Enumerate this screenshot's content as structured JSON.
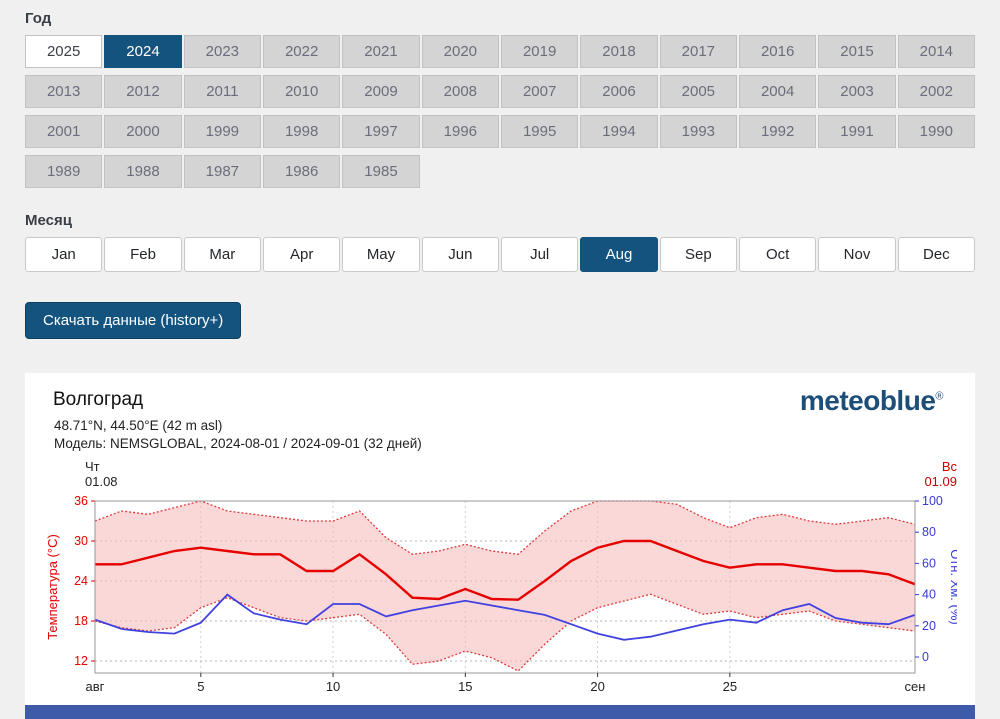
{
  "year_section": {
    "label": "Год",
    "selected": "2024",
    "white": "2025",
    "years": [
      "2025",
      "2024",
      "2023",
      "2022",
      "2021",
      "2020",
      "2019",
      "2018",
      "2017",
      "2016",
      "2015",
      "2014",
      "2013",
      "2012",
      "2011",
      "2010",
      "2009",
      "2008",
      "2007",
      "2006",
      "2005",
      "2004",
      "2003",
      "2002",
      "2001",
      "2000",
      "1999",
      "1998",
      "1997",
      "1996",
      "1995",
      "1994",
      "1993",
      "1992",
      "1991",
      "1990",
      "1989",
      "1988",
      "1987",
      "1986",
      "1985"
    ]
  },
  "month_section": {
    "label": "Месяц",
    "selected": "Aug",
    "months": [
      "Jan",
      "Feb",
      "Mar",
      "Apr",
      "May",
      "Jun",
      "Jul",
      "Aug",
      "Sep",
      "Oct",
      "Nov",
      "Dec"
    ]
  },
  "download_button_label": "Скачать данные (history+)",
  "chart_header": {
    "title": "Волгоград",
    "coordinates": "48.71°N, 44.50°E (42 m asl)",
    "model_line": "Модель: NEMSGLOBAL, 2024-08-01 / 2024-09-01 (32 дней)",
    "brand": "meteoblue",
    "brand_reg": "®"
  },
  "colors": {
    "accent_blue": "#15537f",
    "button_gray": "#d4d4d4",
    "page_bg": "#f0f0f0",
    "brand_blue": "#1d4e78",
    "temp_red": "#e60000",
    "humidity_blue": "#4141e0",
    "band_pink": "#f5b8b8",
    "bottom_bar_blue": "#3d5ba9"
  },
  "chart_data": {
    "type": "line",
    "title": "Волгоград",
    "days": 32,
    "start_label": {
      "weekday": "Чт",
      "date": "01.08"
    },
    "end_label": {
      "weekday": "Вс",
      "date": "01.09"
    },
    "ylabel_left": "Температура (°C)",
    "ylabel_right": "Отн. Хм. (%)",
    "yticks_left": [
      12,
      18,
      24,
      30,
      36
    ],
    "yticks_right": [
      0,
      20,
      40,
      60,
      80,
      100
    ],
    "ylim_left": [
      10.2,
      36
    ],
    "ylim_right": [
      -7.7,
      100
    ],
    "xticks": [
      5,
      10,
      15,
      20,
      25
    ],
    "xstart_label": "авг",
    "xend_label": "сен",
    "grid": true,
    "legend": "none",
    "series": [
      {
        "name": "temperature_max",
        "axis": "left",
        "style": "dotted",
        "color": "#e23b3b",
        "values": [
          33,
          34.5,
          34,
          35,
          36,
          34.5,
          34,
          33.5,
          33,
          33,
          34.5,
          30.5,
          28,
          28.5,
          29.5,
          28.5,
          28,
          31.5,
          34.5,
          36,
          36.3,
          36.3,
          35.5,
          33.5,
          32,
          33.5,
          34,
          33,
          32.5,
          33,
          33.5,
          32.5
        ]
      },
      {
        "name": "temperature_mean",
        "axis": "left",
        "style": "solid",
        "color": "#e60000",
        "values": [
          26.5,
          26.5,
          27.5,
          28.5,
          29,
          28.5,
          28,
          28,
          25.5,
          25.5,
          28,
          25,
          21.5,
          21.3,
          22.8,
          21.3,
          21.2,
          24,
          27,
          29,
          30,
          30,
          28.5,
          27,
          26,
          26.5,
          26.5,
          26,
          25.5,
          25.5,
          25,
          23.5
        ]
      },
      {
        "name": "temperature_min",
        "axis": "left",
        "style": "dotted",
        "color": "#e23b3b",
        "values": [
          18,
          17,
          16.5,
          17,
          20,
          21.5,
          20,
          18.5,
          18,
          18.5,
          19,
          16,
          11.5,
          12,
          13.5,
          12.5,
          10.5,
          14.5,
          18,
          20,
          21,
          22,
          20.5,
          19,
          19.5,
          18.5,
          19,
          19.5,
          18,
          17.5,
          17,
          16.5
        ]
      },
      {
        "name": "relative_humidity",
        "axis": "right",
        "style": "solid",
        "color": "#4141e0",
        "values": [
          24,
          18,
          16,
          15,
          22,
          40,
          28,
          24,
          21,
          34,
          34,
          26,
          30,
          33,
          36,
          33,
          30,
          27,
          21,
          15,
          11,
          13,
          17,
          21,
          24,
          22,
          30,
          34,
          25,
          22,
          21,
          27
        ]
      }
    ],
    "band": {
      "upper": "temperature_max",
      "lower": "temperature_min",
      "fill": "#f5b8b8"
    },
    "bottom_bar_color": "#3d5ba9"
  }
}
